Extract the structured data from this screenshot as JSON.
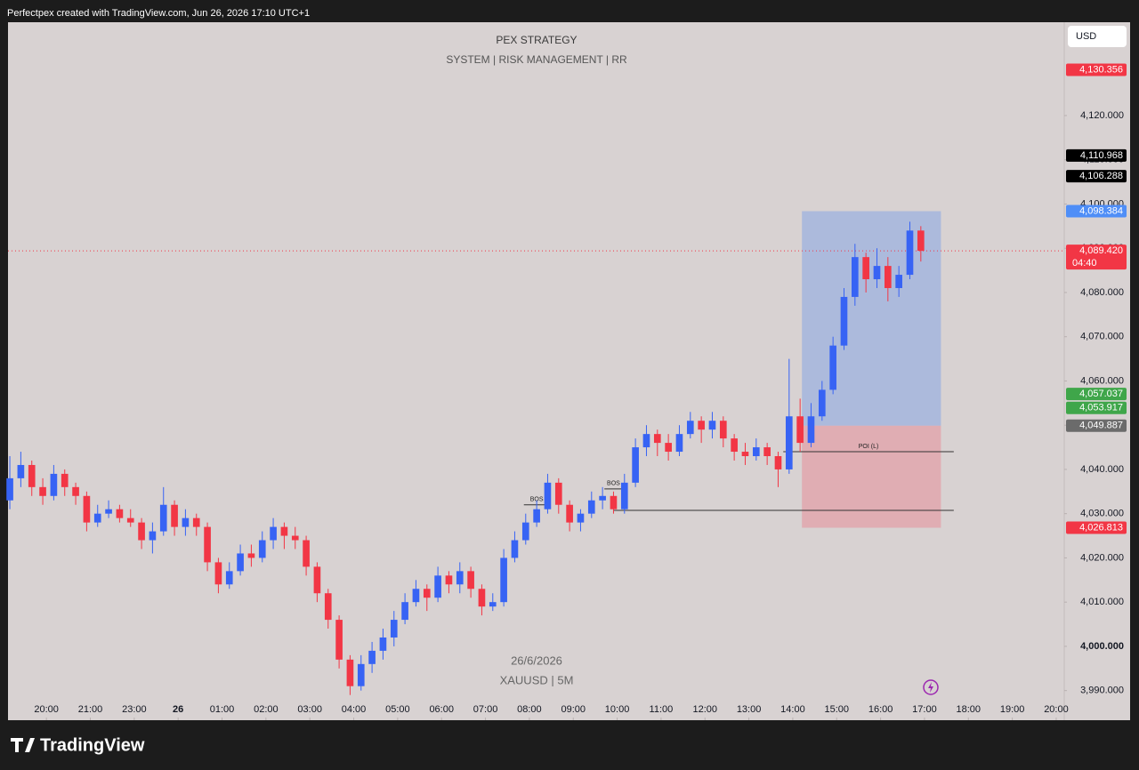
{
  "header": "Perfectpex created with TradingView.com, Jun 26, 2026 17:10 UTC+1",
  "brand": "TradingView",
  "currency": "USD",
  "chart_data": {
    "type": "candlestick",
    "title": "PEX STRATEGY",
    "subtitle": "SYSTEM | RISK MANAGEMENT | RR",
    "watermark": [
      "26/6/2026",
      "XAUUSD | 5M"
    ],
    "x": [
      -10,
      -7,
      -4,
      -1,
      2,
      5,
      8,
      11,
      14,
      17,
      20,
      23,
      26,
      29,
      32,
      35,
      38,
      41,
      44,
      47,
      50,
      53,
      56,
      59,
      62,
      65,
      68,
      71,
      74,
      77,
      80,
      83,
      86,
      89,
      92,
      95,
      98,
      101,
      104,
      107,
      110,
      113,
      116,
      119,
      122,
      125,
      128,
      131,
      134,
      137,
      140,
      143,
      146,
      149,
      152,
      155,
      158,
      161,
      164,
      167,
      170,
      173,
      176,
      179,
      182,
      185,
      188,
      191,
      194,
      197,
      200,
      203,
      206,
      209,
      212,
      215,
      218,
      221,
      224,
      227,
      230,
      233,
      236,
      239
    ],
    "open": [
      4033,
      4038,
      4041,
      4036,
      4034,
      4039,
      4036,
      4034,
      4028,
      4030,
      4031,
      4029,
      4028,
      4024,
      4026,
      4032,
      4027,
      4029,
      4027,
      4019,
      4014,
      4017,
      4021,
      4020,
      4024,
      4027,
      4025,
      4024,
      4018,
      4012,
      4006,
      3997,
      3991,
      3996,
      3999,
      4002,
      4006,
      4010,
      4013,
      4011,
      4016,
      4014,
      4017,
      4013,
      4009,
      4010,
      4020,
      4024,
      4028,
      4031,
      4037,
      4032,
      4028,
      4030,
      4033,
      4034,
      4031,
      4037,
      4045,
      4048,
      4046,
      4044,
      4048,
      4051,
      4049,
      4051,
      4047,
      4044,
      4043,
      4045,
      4043,
      4040,
      4052,
      4046,
      4052,
      4058,
      4068,
      4079,
      4088,
      4083,
      4086,
      4081,
      4084,
      4094
    ],
    "high": [
      4043,
      4044,
      4042,
      4038,
      4041,
      4040,
      4037,
      4035,
      4032,
      4033,
      4032,
      4031,
      4029,
      4028,
      4036,
      4033,
      4031,
      4030,
      4028,
      4020,
      4019,
      4023,
      4023,
      4026,
      4029,
      4028,
      4027,
      4025,
      4019,
      4013,
      4007,
      3998,
      3998,
      4001,
      4004,
      4008,
      4012,
      4015,
      4014,
      4018,
      4017,
      4019,
      4018,
      4014,
      4012,
      4022,
      4026,
      4030,
      4033,
      4039,
      4038,
      4033,
      4031,
      4035,
      4036,
      4035,
      4039,
      4047,
      4050,
      4049,
      4048,
      4050,
      4053,
      4052,
      4053,
      4052,
      4048,
      4046,
      4047,
      4046,
      4044,
      4065,
      4056,
      4055,
      4060,
      4070,
      4081,
      4091,
      4089,
      4090,
      4088,
      4086,
      4096,
      4095
    ],
    "low": [
      4031,
      4036,
      4034,
      4032,
      4033,
      4034,
      4032,
      4026,
      4027,
      4029,
      4028,
      4027,
      4022,
      4021,
      4025,
      4025,
      4025,
      4025,
      4017,
      4012,
      4013,
      4016,
      4018,
      4019,
      4022,
      4022,
      4022,
      4016,
      4010,
      4004,
      3995,
      3989,
      3990,
      3994,
      3997,
      4000,
      4005,
      4009,
      4008,
      4010,
      4012,
      4012,
      4011,
      4007,
      4008,
      4009,
      4019,
      4023,
      4027,
      4030,
      4030,
      4026,
      4026,
      4029,
      4031,
      4030,
      4030,
      4036,
      4043,
      4043,
      4042,
      4043,
      4047,
      4046,
      4047,
      4045,
      4042,
      4041,
      4042,
      4041,
      4036,
      4039,
      4044,
      4045,
      4051,
      4057,
      4067,
      4077,
      4080,
      4081,
      4078,
      4079,
      4083,
      4087
    ],
    "close": [
      4038,
      4041,
      4036,
      4034,
      4039,
      4036,
      4034,
      4028,
      4030,
      4031,
      4029,
      4028,
      4024,
      4026,
      4032,
      4027,
      4029,
      4027,
      4019,
      4014,
      4017,
      4021,
      4020,
      4024,
      4027,
      4025,
      4024,
      4018,
      4012,
      4006,
      3997,
      3991,
      3996,
      3999,
      4002,
      4006,
      4010,
      4013,
      4011,
      4016,
      4014,
      4017,
      4013,
      4009,
      4010,
      4020,
      4024,
      4028,
      4031,
      4037,
      4032,
      4028,
      4030,
      4033,
      4034,
      4031,
      4037,
      4045,
      4048,
      4046,
      4044,
      4048,
      4051,
      4049,
      4051,
      4047,
      4044,
      4043,
      4045,
      4043,
      4040,
      4052,
      4046,
      4052,
      4058,
      4068,
      4079,
      4088,
      4083,
      4086,
      4081,
      4084,
      4094,
      4089.42
    ],
    "up_color": "#3763f4",
    "down_color": "#f23645",
    "xlim": [
      -10.5,
      278.2
    ],
    "xticks": [
      {
        "value": 0,
        "label": "20:00"
      },
      {
        "value": 12,
        "label": "21:00"
      },
      {
        "value": 24,
        "label": "23:00"
      },
      {
        "value": 36,
        "label": "26",
        "bold": true
      },
      {
        "value": 48,
        "label": "01:00"
      },
      {
        "value": 60,
        "label": "02:00"
      },
      {
        "value": 72,
        "label": "03:00"
      },
      {
        "value": 84,
        "label": "04:00"
      },
      {
        "value": 96,
        "label": "05:00"
      },
      {
        "value": 108,
        "label": "06:00"
      },
      {
        "value": 120,
        "label": "07:00"
      },
      {
        "value": 132,
        "label": "08:00"
      },
      {
        "value": 144,
        "label": "09:00"
      },
      {
        "value": 156,
        "label": "10:00"
      },
      {
        "value": 168,
        "label": "11:00"
      },
      {
        "value": 180,
        "label": "12:00"
      },
      {
        "value": 192,
        "label": "13:00"
      },
      {
        "value": 204,
        "label": "14:00"
      },
      {
        "value": 216,
        "label": "15:00"
      },
      {
        "value": 228,
        "label": "16:00"
      },
      {
        "value": 240,
        "label": "17:00"
      },
      {
        "value": 252,
        "label": "18:00"
      },
      {
        "value": 264,
        "label": "19:00"
      },
      {
        "value": 276,
        "label": "20:00"
      }
    ],
    "ylim": [
      3983.3,
      4141.1
    ],
    "yticks": [
      {
        "value": 3990,
        "label": "3,990.000"
      },
      {
        "value": 4000,
        "label": "4,000.000",
        "bold": true
      },
      {
        "value": 4010,
        "label": "4,010.000"
      },
      {
        "value": 4020,
        "label": "4,020.000"
      },
      {
        "value": 4030,
        "label": "4,030.000"
      },
      {
        "value": 4040,
        "label": "4,040.000"
      },
      {
        "value": 4050,
        "label": "4,050.000"
      },
      {
        "value": 4060,
        "label": "4,060.000"
      },
      {
        "value": 4070,
        "label": "4,070.000"
      },
      {
        "value": 4080,
        "label": "4,080.000"
      },
      {
        "value": 4090,
        "label": "4,090.000"
      },
      {
        "value": 4100,
        "label": "4,100.000"
      },
      {
        "value": 4110,
        "label": "4,110.000"
      },
      {
        "value": 4120,
        "label": "4,120.000"
      }
    ],
    "grid": false,
    "price_labels": [
      {
        "value": 4130.356,
        "label": "4,130.356",
        "color": "#f23645"
      },
      {
        "value": 4110.968,
        "label": "4,110.968",
        "color": "#000000"
      },
      {
        "value": 4106.288,
        "label": "4,106.288",
        "color": "#000000"
      },
      {
        "value": 4098.384,
        "label": "4,098.384",
        "color": "#4f8ef7"
      },
      {
        "value": 4089.42,
        "label": "4,089.420",
        "color": "#f23645"
      },
      {
        "value": 4057.037,
        "label": "4,057.037",
        "color": "#3fa64a"
      },
      {
        "value": 4053.917,
        "label": "4,053.917",
        "color": "#3fa64a"
      },
      {
        "value": 4049.887,
        "label": "4,049.887",
        "color": "#6b6b6b"
      },
      {
        "value": 4026.813,
        "label": "4,026.813",
        "color": "#f23645"
      }
    ],
    "countdown": "04:40",
    "position": {
      "x": [
        206.5,
        244.5
      ],
      "target": 4098.384,
      "entry": 4049.887,
      "stop": 4026.813
    },
    "levels": [
      {
        "name": "POI (L)",
        "value": 4044.0,
        "x": [
          201.4,
          248
        ]
      },
      {
        "value": 4030.75,
        "x": [
          155,
          248
        ]
      },
      {
        "name": "BOS",
        "value": 4032,
        "x": [
          130.5,
          137.5
        ]
      },
      {
        "name": "BOS",
        "value": 4035.6,
        "x": [
          152.5,
          157.5
        ]
      }
    ]
  }
}
